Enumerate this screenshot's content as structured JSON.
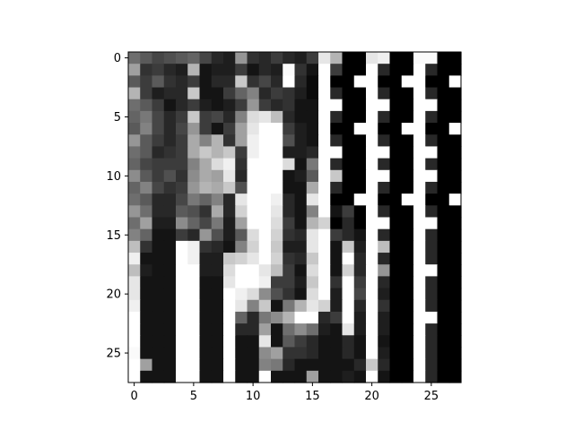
{
  "chart_data": {
    "type": "heatmap",
    "colormap": "gray",
    "vmin": 0,
    "vmax": 255,
    "title": "",
    "xlabel": "",
    "ylabel": "",
    "xlim": [
      -0.5,
      27.5
    ],
    "ylim": [
      27.5,
      -0.5
    ],
    "xticks": [
      0,
      5,
      10,
      15,
      20,
      25
    ],
    "yticks": [
      0,
      5,
      10,
      15,
      20,
      25
    ],
    "xtick_labels": [
      "0",
      "5",
      "10",
      "15",
      "20",
      "25"
    ],
    "ytick_labels": [
      "0",
      "5",
      "10",
      "15",
      "20",
      "25"
    ],
    "grid": false,
    "matrix": [
      [
        110,
        90,
        70,
        80,
        90,
        100,
        70,
        40,
        30,
        150,
        50,
        40,
        60,
        40,
        30,
        60,
        230,
        180,
        0,
        0,
        230,
        240,
        0,
        0,
        250,
        250,
        0,
        0
      ],
      [
        160,
        50,
        60,
        40,
        30,
        180,
        20,
        30,
        30,
        60,
        20,
        40,
        30,
        250,
        50,
        20,
        255,
        60,
        0,
        0,
        255,
        40,
        0,
        0,
        255,
        40,
        0,
        0
      ],
      [
        90,
        60,
        90,
        50,
        40,
        60,
        20,
        40,
        40,
        200,
        50,
        70,
        40,
        255,
        40,
        10,
        255,
        0,
        0,
        255,
        255,
        0,
        0,
        255,
        255,
        0,
        0,
        255
      ],
      [
        180,
        60,
        30,
        40,
        40,
        200,
        20,
        20,
        60,
        100,
        130,
        40,
        60,
        50,
        30,
        10,
        255,
        40,
        0,
        0,
        255,
        40,
        0,
        0,
        255,
        40,
        0,
        0
      ],
      [
        110,
        90,
        60,
        20,
        40,
        60,
        30,
        20,
        30,
        60,
        150,
        60,
        40,
        50,
        20,
        20,
        255,
        255,
        0,
        0,
        255,
        255,
        0,
        0,
        255,
        255,
        0,
        0
      ],
      [
        100,
        120,
        70,
        40,
        60,
        200,
        60,
        70,
        40,
        130,
        220,
        230,
        190,
        40,
        20,
        20,
        255,
        40,
        0,
        0,
        255,
        40,
        0,
        0,
        255,
        40,
        0,
        0
      ],
      [
        90,
        130,
        70,
        40,
        70,
        150,
        60,
        20,
        60,
        160,
        230,
        255,
        255,
        60,
        30,
        20,
        255,
        0,
        0,
        255,
        255,
        0,
        0,
        255,
        255,
        0,
        0,
        255
      ],
      [
        150,
        90,
        60,
        40,
        60,
        170,
        130,
        180,
        50,
        160,
        240,
        255,
        255,
        80,
        30,
        20,
        255,
        40,
        0,
        0,
        255,
        40,
        0,
        0,
        255,
        40,
        0,
        0
      ],
      [
        110,
        90,
        40,
        50,
        60,
        170,
        200,
        180,
        200,
        60,
        240,
        255,
        255,
        30,
        30,
        40,
        255,
        255,
        0,
        0,
        255,
        255,
        0,
        0,
        255,
        255,
        0,
        0
      ],
      [
        100,
        70,
        60,
        60,
        60,
        130,
        170,
        220,
        240,
        50,
        255,
        255,
        255,
        220,
        20,
        120,
        255,
        40,
        0,
        0,
        255,
        40,
        0,
        0,
        255,
        40,
        0,
        0
      ],
      [
        140,
        90,
        60,
        80,
        50,
        140,
        170,
        160,
        230,
        40,
        255,
        255,
        255,
        20,
        30,
        90,
        255,
        200,
        0,
        0,
        255,
        255,
        0,
        0,
        255,
        255,
        0,
        0
      ],
      [
        100,
        130,
        70,
        50,
        60,
        150,
        180,
        170,
        200,
        80,
        255,
        255,
        255,
        20,
        20,
        170,
        255,
        40,
        0,
        0,
        255,
        40,
        0,
        0,
        255,
        40,
        0,
        0
      ],
      [
        110,
        90,
        40,
        40,
        70,
        120,
        100,
        130,
        40,
        230,
        255,
        255,
        240,
        40,
        20,
        230,
        255,
        0,
        0,
        255,
        255,
        0,
        0,
        255,
        255,
        0,
        0,
        255
      ],
      [
        150,
        110,
        40,
        40,
        90,
        80,
        50,
        170,
        40,
        210,
        255,
        255,
        230,
        40,
        20,
        130,
        255,
        20,
        60,
        0,
        255,
        40,
        0,
        0,
        255,
        40,
        0,
        0
      ],
      [
        110,
        160,
        30,
        30,
        140,
        100,
        70,
        120,
        30,
        160,
        255,
        255,
        220,
        60,
        20,
        180,
        210,
        0,
        40,
        0,
        255,
        255,
        0,
        0,
        255,
        255,
        0,
        0
      ],
      [
        130,
        100,
        20,
        20,
        60,
        40,
        150,
        80,
        30,
        90,
        220,
        255,
        210,
        50,
        40,
        230,
        255,
        60,
        40,
        20,
        255,
        40,
        0,
        0,
        255,
        40,
        0,
        0
      ],
      [
        190,
        50,
        20,
        20,
        255,
        240,
        50,
        40,
        20,
        130,
        210,
        255,
        200,
        30,
        30,
        230,
        255,
        20,
        200,
        30,
        255,
        190,
        0,
        0,
        255,
        40,
        0,
        0
      ],
      [
        240,
        20,
        20,
        20,
        255,
        240,
        30,
        30,
        200,
        210,
        230,
        255,
        210,
        50,
        40,
        200,
        255,
        20,
        255,
        40,
        255,
        40,
        0,
        0,
        255,
        40,
        0,
        0
      ],
      [
        190,
        30,
        20,
        20,
        255,
        255,
        30,
        30,
        220,
        255,
        255,
        230,
        190,
        60,
        20,
        220,
        255,
        20,
        210,
        40,
        255,
        150,
        0,
        0,
        255,
        255,
        0,
        0
      ],
      [
        230,
        20,
        20,
        20,
        255,
        255,
        20,
        20,
        230,
        255,
        255,
        240,
        60,
        60,
        30,
        200,
        255,
        50,
        255,
        60,
        255,
        40,
        0,
        0,
        255,
        40,
        0,
        0
      ],
      [
        230,
        20,
        20,
        20,
        255,
        255,
        20,
        20,
        255,
        240,
        220,
        140,
        80,
        50,
        20,
        220,
        255,
        30,
        255,
        70,
        255,
        30,
        0,
        0,
        255,
        40,
        0,
        0
      ],
      [
        240,
        20,
        20,
        20,
        255,
        255,
        20,
        20,
        255,
        230,
        130,
        200,
        20,
        120,
        180,
        230,
        210,
        30,
        255,
        40,
        255,
        50,
        0,
        0,
        255,
        40,
        0,
        0
      ],
      [
        255,
        20,
        20,
        20,
        255,
        255,
        20,
        20,
        255,
        100,
        40,
        120,
        140,
        180,
        255,
        255,
        40,
        60,
        255,
        30,
        255,
        30,
        0,
        0,
        255,
        255,
        0,
        0
      ],
      [
        255,
        20,
        20,
        20,
        255,
        255,
        20,
        20,
        255,
        40,
        40,
        160,
        20,
        110,
        140,
        110,
        30,
        20,
        230,
        30,
        255,
        30,
        0,
        0,
        255,
        40,
        0,
        0
      ],
      [
        255,
        20,
        20,
        20,
        255,
        255,
        20,
        20,
        255,
        20,
        20,
        230,
        20,
        90,
        60,
        40,
        20,
        20,
        40,
        20,
        255,
        20,
        0,
        0,
        255,
        40,
        0,
        0
      ],
      [
        250,
        20,
        20,
        20,
        255,
        255,
        20,
        20,
        255,
        20,
        20,
        140,
        160,
        50,
        50,
        40,
        20,
        20,
        40,
        20,
        255,
        30,
        0,
        0,
        255,
        40,
        0,
        0
      ],
      [
        255,
        160,
        20,
        20,
        255,
        255,
        20,
        20,
        255,
        20,
        20,
        130,
        120,
        40,
        20,
        20,
        20,
        20,
        20,
        40,
        200,
        40,
        0,
        0,
        255,
        40,
        0,
        0
      ],
      [
        255,
        20,
        20,
        20,
        255,
        255,
        20,
        20,
        255,
        20,
        20,
        255,
        20,
        20,
        20,
        160,
        20,
        20,
        30,
        20,
        255,
        20,
        0,
        0,
        255,
        40,
        0,
        0
      ]
    ]
  }
}
